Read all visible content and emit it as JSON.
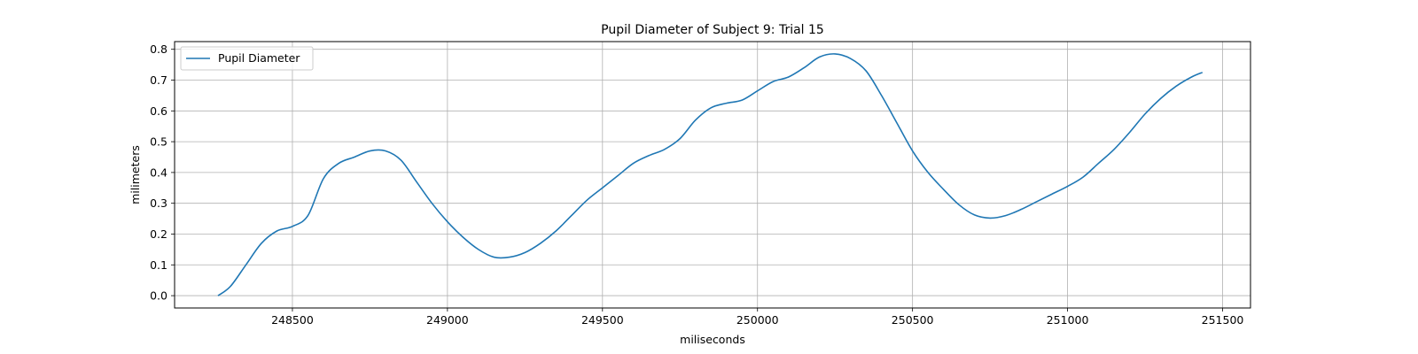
{
  "chart_data": {
    "type": "line",
    "title": "Pupil Diameter of Subject 9: Trial 15",
    "xlabel": "miliseconds",
    "ylabel": "milimeters",
    "xlim": [
      248120,
      251590
    ],
    "ylim": [
      -0.04,
      0.825
    ],
    "xticks": [
      248500,
      249000,
      249500,
      250000,
      250500,
      251000,
      251500
    ],
    "yticks": [
      0.0,
      0.1,
      0.2,
      0.3,
      0.4,
      0.5,
      0.6,
      0.7,
      0.8
    ],
    "grid": true,
    "legend": {
      "placement": "upper-left",
      "entries": [
        "Pupil Diameter"
      ]
    },
    "colors": {
      "series": "#1f77b4",
      "grid": "#b0b0b0",
      "axis": "#000000"
    },
    "series": [
      {
        "name": "Pupil Diameter",
        "x": [
          248260,
          248300,
          248350,
          248400,
          248450,
          248500,
          248550,
          248600,
          248650,
          248700,
          248750,
          248800,
          248850,
          248900,
          248950,
          249000,
          249050,
          249100,
          249150,
          249200,
          249250,
          249300,
          249350,
          249400,
          249450,
          249500,
          249550,
          249600,
          249650,
          249700,
          249750,
          249800,
          249850,
          249900,
          249950,
          250000,
          250050,
          250100,
          250150,
          250200,
          250250,
          250300,
          250350,
          250400,
          250450,
          250500,
          250550,
          250600,
          250650,
          250700,
          250750,
          250800,
          250850,
          250900,
          250950,
          251000,
          251050,
          251100,
          251150,
          251200,
          251250,
          251300,
          251350,
          251400,
          251435
        ],
        "y": [
          0.0,
          0.03,
          0.1,
          0.17,
          0.21,
          0.225,
          0.26,
          0.38,
          0.43,
          0.45,
          0.47,
          0.47,
          0.44,
          0.37,
          0.3,
          0.24,
          0.19,
          0.15,
          0.125,
          0.125,
          0.14,
          0.17,
          0.21,
          0.26,
          0.31,
          0.35,
          0.39,
          0.43,
          0.455,
          0.475,
          0.51,
          0.57,
          0.61,
          0.625,
          0.635,
          0.665,
          0.695,
          0.71,
          0.74,
          0.775,
          0.785,
          0.77,
          0.73,
          0.65,
          0.56,
          0.47,
          0.4,
          0.345,
          0.295,
          0.262,
          0.252,
          0.26,
          0.28,
          0.305,
          0.33,
          0.355,
          0.385,
          0.43,
          0.475,
          0.53,
          0.59,
          0.64,
          0.68,
          0.71,
          0.725
        ]
      }
    ]
  }
}
